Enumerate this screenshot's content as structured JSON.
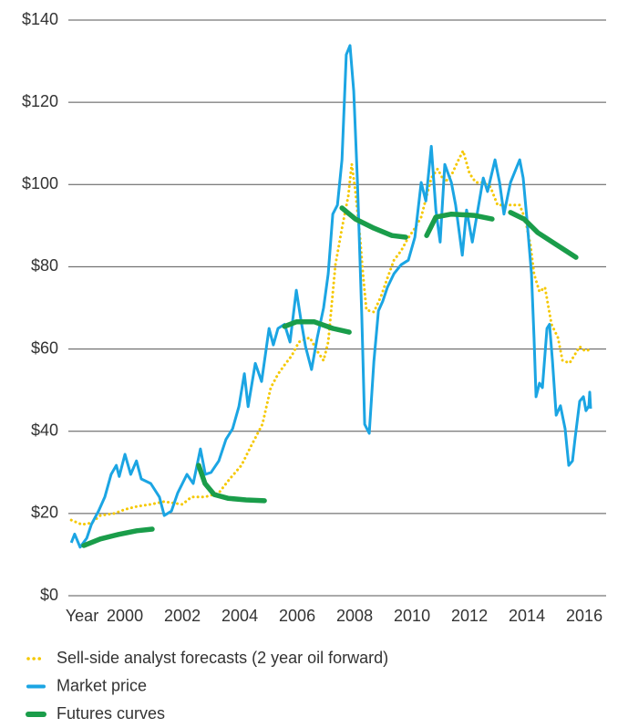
{
  "chart_data": {
    "type": "line",
    "xlabel": "Year",
    "xlim": [
      1998.03,
      2016.76
    ],
    "xticks": [
      2000,
      2002,
      2004,
      2006,
      2008,
      2010,
      2012,
      2014,
      2016
    ],
    "ylim": [
      0,
      140
    ],
    "yticks": [
      {
        "value": 0,
        "label": "$0"
      },
      {
        "value": 20,
        "label": "$20"
      },
      {
        "value": 40,
        "label": "$40"
      },
      {
        "value": 60,
        "label": "$60"
      },
      {
        "value": 80,
        "label": "$80"
      },
      {
        "value": 100,
        "label": "$100"
      },
      {
        "value": 120,
        "label": "$120"
      },
      {
        "value": 140,
        "label": "$140"
      }
    ],
    "grid": true,
    "legend": "bottom",
    "series": [
      {
        "name": "Sell-side analyst forecasts (2 year oil forward)",
        "color": "#f5c800",
        "line_style": "dotted",
        "x": [
          1998.13,
          1998.5,
          1998.83,
          1999.14,
          1999.62,
          2000,
          2000.41,
          2000.89,
          2001.37,
          2002,
          2002.32,
          2002.79,
          2003.27,
          2003.65,
          2004.06,
          2004.38,
          2004.79,
          2005.08,
          2005.33,
          2005.56,
          2005.81,
          2006.06,
          2006.44,
          2006.7,
          2006.92,
          2007.08,
          2007.33,
          2007.56,
          2007.78,
          2007.9,
          2008.03,
          2008.19,
          2008.29,
          2008.41,
          2008.67,
          2008.92,
          2009.14,
          2009.37,
          2009.62,
          2009.84,
          2010.1,
          2010.32,
          2010.51,
          2010.67,
          2010.89,
          2011.14,
          2011.4,
          2011.62,
          2011.78,
          2012,
          2012.22,
          2012.48,
          2012.73,
          2012.98,
          2013.27,
          2013.52,
          2013.75,
          2013.94,
          2014.13,
          2014.25,
          2014.44,
          2014.63,
          2014.86,
          2015.08,
          2015.24,
          2015.49,
          2015.65,
          2015.84,
          2016.03,
          2016.22
        ],
        "values": [
          18.4,
          17.3,
          17.7,
          19.5,
          20,
          21,
          21.7,
          22.2,
          22.9,
          22.2,
          24,
          24,
          25,
          28.4,
          31.7,
          36.2,
          41.7,
          50.6,
          53.9,
          56.1,
          58.4,
          61.7,
          62.8,
          59.5,
          57.2,
          61.7,
          80.5,
          89.4,
          97.2,
          105,
          98.3,
          87.2,
          78.3,
          69.5,
          69,
          72.8,
          77.2,
          81.6,
          83.9,
          86.7,
          89.4,
          92.1,
          97.2,
          101.6,
          103.8,
          100.5,
          102.7,
          106,
          108.2,
          102.7,
          100.5,
          100.5,
          99.4,
          95,
          95,
          95,
          95,
          91.6,
          85,
          78.3,
          73.9,
          75,
          66,
          62.8,
          57.2,
          56.6,
          58.4,
          60.6,
          59.5,
          59.9
        ]
      },
      {
        "name": "Market price",
        "color": "#1ba5e3",
        "line_style": "solid",
        "x": [
          1998.13,
          1998.25,
          1998.44,
          1998.67,
          1998.83,
          1999.08,
          1999.3,
          1999.52,
          1999.7,
          1999.8,
          2000,
          2000.2,
          2000.4,
          2000.57,
          2000.9,
          2001.2,
          2001.37,
          2001.62,
          2001.84,
          2002.16,
          2002.38,
          2002.63,
          2002.8,
          2003,
          2003.27,
          2003.52,
          2003.75,
          2003.97,
          2004.16,
          2004.29,
          2004.54,
          2004.76,
          2005.02,
          2005.17,
          2005.33,
          2005.56,
          2005.75,
          2005.97,
          2006.13,
          2006.29,
          2006.5,
          2006.7,
          2006.92,
          2007.08,
          2007.24,
          2007.4,
          2007.56,
          2007.71,
          2007.84,
          2007.97,
          2008.1,
          2008.25,
          2008.35,
          2008.51,
          2008.67,
          2008.83,
          2008.98,
          2009.14,
          2009.37,
          2009.62,
          2009.87,
          2010.1,
          2010.32,
          2010.48,
          2010.67,
          2010.83,
          2010.98,
          2011.14,
          2011.37,
          2011.52,
          2011.75,
          2011.9,
          2012.1,
          2012.29,
          2012.48,
          2012.63,
          2012.89,
          2013.05,
          2013.2,
          2013.43,
          2013.62,
          2013.75,
          2013.87,
          2014,
          2014.16,
          2014.25,
          2014.32,
          2014.44,
          2014.54,
          2014.7,
          2014.79,
          2014.89,
          2015.02,
          2015.17,
          2015.33,
          2015.46,
          2015.59,
          2015.68,
          2015.84,
          2015.97,
          2016.06,
          2016.16,
          2016.19,
          2016.22
        ],
        "values": [
          12.9,
          15,
          11.8,
          14,
          17.3,
          20.6,
          24,
          29.5,
          31.7,
          29,
          34.4,
          29.5,
          32.8,
          28.4,
          27.3,
          24,
          19.5,
          20.6,
          25,
          29.5,
          27.3,
          35.7,
          29.5,
          30,
          32.8,
          38,
          40.6,
          46,
          54,
          46,
          56.5,
          52.1,
          65,
          61,
          65,
          66,
          61.7,
          74.3,
          67,
          60.6,
          55,
          62.8,
          70,
          78.3,
          92.8,
          95,
          106,
          131.6,
          133.8,
          122.7,
          100.5,
          68.3,
          41.7,
          39.5,
          57,
          69.3,
          71.6,
          75,
          78.3,
          80.5,
          81.6,
          87.2,
          100.5,
          96,
          109.3,
          93.8,
          86,
          104.9,
          100.5,
          95,
          82.8,
          93.8,
          86,
          93.8,
          101.6,
          98.3,
          106,
          100.5,
          92.8,
          100.5,
          103.8,
          106,
          101.6,
          91.6,
          78.3,
          62.8,
          48.4,
          51.7,
          50.6,
          65,
          66,
          57.2,
          43.9,
          46.2,
          40.6,
          31.7,
          32.8,
          38.4,
          47.3,
          48.4,
          45,
          46.2,
          49.5,
          45.5
        ]
      },
      {
        "name": "Futures curves",
        "color": "#1a9d4a",
        "line_style": "solid",
        "x": [
          1998.57,
          1999.14,
          1999.78,
          2000.41,
          2000.95,
          null,
          2002.57,
          2002.79,
          2003.11,
          2003.59,
          2004.22,
          2004.86,
          null,
          2005.56,
          2005.97,
          2006.6,
          2007.24,
          2007.81,
          null,
          2007.56,
          2008.03,
          2008.67,
          2009.3,
          2009.78,
          null,
          2010.51,
          2010.83,
          2011.37,
          2012.16,
          2012.79,
          null,
          2013.43,
          2013.9,
          2014.38,
          2015.02,
          2015.71
        ],
        "values": [
          12.2,
          13.8,
          14.9,
          15.8,
          16.2,
          null,
          31.7,
          27.3,
          24.6,
          23.7,
          23.3,
          23.1,
          null,
          65.5,
          66.6,
          66.6,
          65,
          64.1,
          null,
          94.3,
          91.6,
          89.4,
          87.6,
          87.2,
          null,
          87.6,
          92.1,
          92.8,
          92.5,
          91.6,
          null,
          93.2,
          91.6,
          88.3,
          85.4,
          82.3
        ]
      }
    ]
  }
}
